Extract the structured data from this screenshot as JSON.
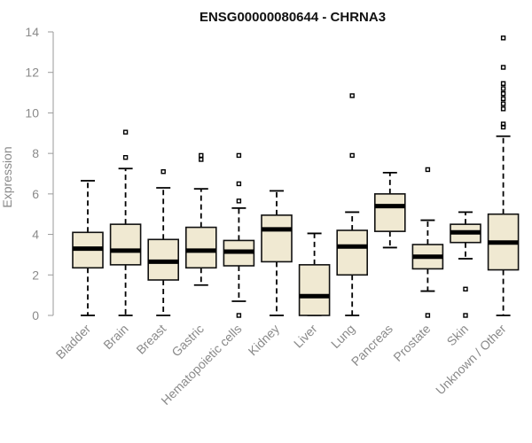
{
  "chart_data": {
    "type": "box",
    "title": "ENSG00000080644 - CHRNA3",
    "ylabel": "Expression",
    "xlabel": "",
    "ylim": [
      0,
      14
    ],
    "yticks": [
      0,
      2,
      4,
      6,
      8,
      10,
      12,
      14
    ],
    "grid": false,
    "box_color": "#f0e9d2",
    "categories": [
      "Bladder",
      "Brain",
      "Breast",
      "Gastric",
      "Hematopoietic cells",
      "Kidney",
      "Liver",
      "Lung",
      "Pancreas",
      "Prostate",
      "Skin",
      "Unknown / Other"
    ],
    "boxes": [
      {
        "min": 0,
        "q1": 2.35,
        "median": 3.3,
        "q3": 4.1,
        "max": 6.65,
        "outliers": []
      },
      {
        "min": 0,
        "q1": 2.5,
        "median": 3.2,
        "q3": 4.5,
        "max": 7.25,
        "outliers": [
          7.8,
          9.05
        ]
      },
      {
        "min": 0,
        "q1": 1.75,
        "median": 2.65,
        "q3": 3.75,
        "max": 6.3,
        "outliers": [
          7.1
        ]
      },
      {
        "min": 1.5,
        "q1": 2.35,
        "median": 3.2,
        "q3": 4.35,
        "max": 6.25,
        "outliers": [
          7.7,
          7.9
        ]
      },
      {
        "min": 0.7,
        "q1": 2.45,
        "median": 3.15,
        "q3": 3.7,
        "max": 5.3,
        "outliers": [
          0,
          5.65,
          6.5,
          7.9
        ]
      },
      {
        "min": 0,
        "q1": 2.65,
        "median": 4.25,
        "q3": 4.95,
        "max": 6.15,
        "outliers": []
      },
      {
        "min": 0,
        "q1": 0,
        "median": 0.95,
        "q3": 2.5,
        "max": 4.05,
        "outliers": []
      },
      {
        "min": 0,
        "q1": 2.0,
        "median": 3.4,
        "q3": 4.2,
        "max": 5.1,
        "outliers": [
          7.9,
          10.85
        ]
      },
      {
        "min": 3.35,
        "q1": 4.15,
        "median": 5.4,
        "q3": 6.0,
        "max": 7.05,
        "outliers": []
      },
      {
        "min": 1.2,
        "q1": 2.3,
        "median": 2.9,
        "q3": 3.5,
        "max": 4.7,
        "outliers": [
          0,
          7.2
        ]
      },
      {
        "min": 2.8,
        "q1": 3.6,
        "median": 4.1,
        "q3": 4.5,
        "max": 5.1,
        "outliers": [
          0,
          1.3
        ]
      },
      {
        "min": 0,
        "q1": 2.25,
        "median": 3.6,
        "q3": 5.0,
        "max": 8.85,
        "outliers": [
          9.3,
          9.45,
          10.2,
          10.45,
          10.7,
          10.95,
          11.2,
          11.45,
          12.25,
          13.7
        ]
      }
    ]
  }
}
